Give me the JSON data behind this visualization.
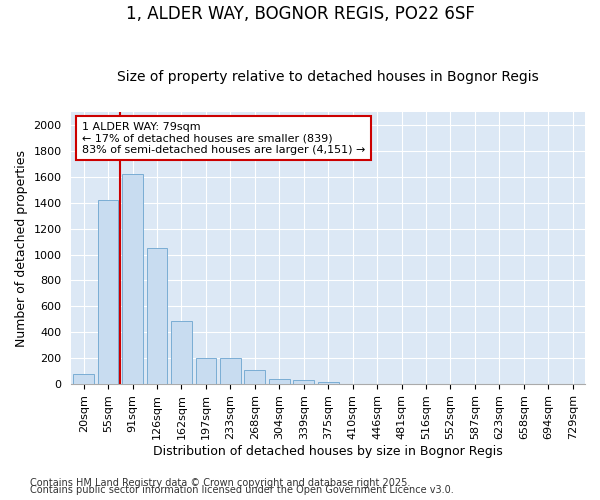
{
  "title1": "1, ALDER WAY, BOGNOR REGIS, PO22 6SF",
  "title2": "Size of property relative to detached houses in Bognor Regis",
  "xlabel": "Distribution of detached houses by size in Bognor Regis",
  "ylabel": "Number of detached properties",
  "categories": [
    "20sqm",
    "55sqm",
    "91sqm",
    "126sqm",
    "162sqm",
    "197sqm",
    "233sqm",
    "268sqm",
    "304sqm",
    "339sqm",
    "375sqm",
    "410sqm",
    "446sqm",
    "481sqm",
    "516sqm",
    "552sqm",
    "587sqm",
    "623sqm",
    "658sqm",
    "694sqm",
    "729sqm"
  ],
  "values": [
    80,
    1420,
    1620,
    1050,
    490,
    205,
    205,
    105,
    40,
    35,
    20,
    0,
    0,
    0,
    0,
    0,
    0,
    0,
    0,
    0,
    0
  ],
  "bar_color": "#c8dcf0",
  "bar_edge_color": "#7aadd4",
  "vline_color": "#cc0000",
  "vline_pos": 1.5,
  "annotation_text": "1 ALDER WAY: 79sqm\n← 17% of detached houses are smaller (839)\n83% of semi-detached houses are larger (4,151) →",
  "box_edge_color": "#cc0000",
  "ylim": [
    0,
    2100
  ],
  "yticks": [
    0,
    200,
    400,
    600,
    800,
    1000,
    1200,
    1400,
    1600,
    1800,
    2000
  ],
  "footer1": "Contains HM Land Registry data © Crown copyright and database right 2025.",
  "footer2": "Contains public sector information licensed under the Open Government Licence v3.0.",
  "fig_bg_color": "#ffffff",
  "plot_bg_color": "#dce8f5",
  "grid_color": "#ffffff",
  "title1_fontsize": 12,
  "title2_fontsize": 10,
  "axis_label_fontsize": 9,
  "tick_fontsize": 8,
  "footer_fontsize": 7,
  "annot_fontsize": 8
}
